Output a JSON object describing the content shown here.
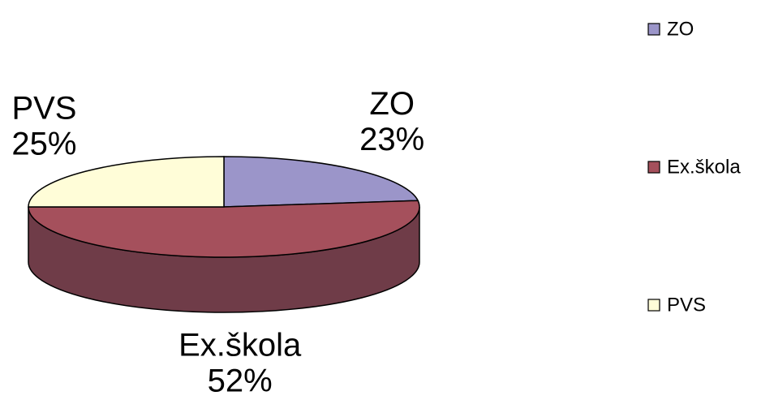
{
  "chart_data": {
    "type": "pie3d",
    "categories": [
      "ZO",
      "Ex.škola",
      "PVS"
    ],
    "values": [
      23,
      52,
      25
    ],
    "value_labels": [
      "23%",
      "52%",
      "25%"
    ],
    "colors": [
      "#9b95c9",
      "#a5505c",
      "#fffdd8"
    ],
    "legend": "right"
  }
}
